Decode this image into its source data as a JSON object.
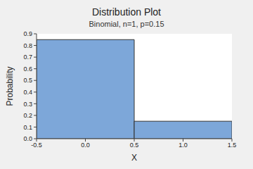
{
  "chart_data": {
    "type": "histogram",
    "title": "Distribution Plot",
    "subtitle": "Binomial, n=1, p=0.15",
    "x_label": "X",
    "y_label": "Probability",
    "bins": [
      -0.5,
      0.5,
      1.5
    ],
    "values": [
      0.85,
      0.15
    ],
    "color": "#7da7d9",
    "xlim": [
      -0.5,
      1.5
    ],
    "xticks": [
      -0.5,
      {
        "value": 0,
        "label": "0.0"
      },
      0.5,
      {
        "value": 1,
        "label": "1.0"
      },
      1.5
    ],
    "ylim": [
      0,
      0.9
    ],
    "yticks": [
      {
        "value": 0,
        "label": "0.0"
      },
      0.1,
      0.2,
      0.3,
      0.4,
      0.5,
      0.6,
      0.7,
      0.8,
      0.9
    ],
    "grid": false
  }
}
